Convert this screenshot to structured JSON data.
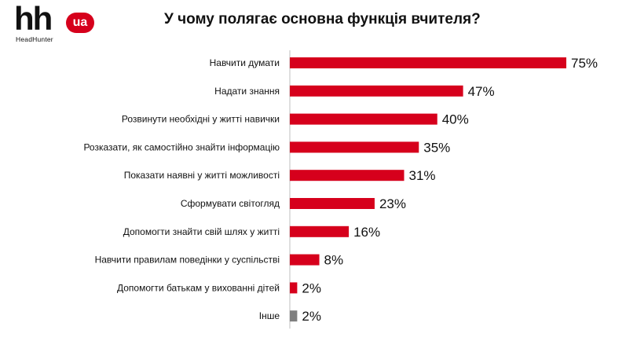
{
  "logo": {
    "mark": "hh",
    "badge": "ua",
    "subtitle": "HeadHunter"
  },
  "colors": {
    "accent": "#d6001c",
    "other_bar": "#7f7f7f",
    "text": "#111111"
  },
  "chart_data": {
    "type": "bar",
    "orientation": "horizontal",
    "title": "У чому полягає основна функція вчителя?",
    "categories": [
      "Навчити думати",
      "Надати знання",
      "Розвинути необхідні у житті навички",
      "Розказати, як самостійно знайти інформацію",
      "Показати наявні у житті можливості",
      "Сформувати світогляд",
      "Допомогти знайти свій шлях у житті",
      "Навчити правилам поведінки у суспільстві",
      "Допомогти батькам у вихованні дітей",
      "Інше"
    ],
    "values": [
      75,
      47,
      40,
      35,
      31,
      23,
      16,
      8,
      2,
      2
    ],
    "value_labels": [
      "75%",
      "47%",
      "40%",
      "35%",
      "31%",
      "23%",
      "16%",
      "8%",
      "2%",
      "2%"
    ],
    "unit": "%",
    "xlim": [
      0,
      100
    ],
    "grid": false,
    "legend": "none"
  }
}
